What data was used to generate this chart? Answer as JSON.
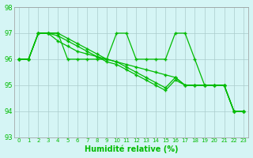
{
  "x": [
    0,
    1,
    2,
    3,
    4,
    5,
    6,
    7,
    8,
    9,
    10,
    11,
    12,
    13,
    14,
    15,
    16,
    17,
    18,
    19,
    20,
    21,
    22,
    23
  ],
  "line1": [
    96,
    96,
    97,
    97,
    97,
    96,
    96,
    96,
    96,
    96,
    97,
    97,
    96,
    96,
    96,
    96,
    97,
    97,
    96,
    95,
    95,
    95,
    94,
    94
  ],
  "line2": [
    96,
    96,
    97,
    97,
    96.7,
    96.5,
    96.3,
    96.2,
    96.1,
    96.0,
    95.9,
    95.8,
    95.7,
    95.6,
    95.5,
    95.4,
    95.3,
    95.0,
    95.0,
    95.0,
    95.0,
    95.0,
    94.0,
    94.0
  ],
  "line3": [
    96,
    96,
    97,
    97,
    96.9,
    96.7,
    96.5,
    96.3,
    96.1,
    95.9,
    95.8,
    95.6,
    95.4,
    95.2,
    95.0,
    94.8,
    95.2,
    95.0,
    95.0,
    95.0,
    95.0,
    95.0,
    94.0,
    94.0
  ],
  "line4": [
    96,
    96,
    97,
    97,
    97,
    96.8,
    96.6,
    96.4,
    96.2,
    96.0,
    95.9,
    95.7,
    95.5,
    95.3,
    95.1,
    94.9,
    95.3,
    95.0,
    95.0,
    95.0,
    95.0,
    95.0,
    94.0,
    94.0
  ],
  "line_color": "#00bb00",
  "bg_color": "#d5f5f5",
  "grid_color": "#aacccc",
  "xlabel": "Humidité relative (%)",
  "ylim": [
    93,
    98
  ],
  "xlim_min": -0.5,
  "xlim_max": 23.5,
  "yticks": [
    93,
    94,
    95,
    96,
    97,
    98
  ],
  "xticks": [
    0,
    1,
    2,
    3,
    4,
    5,
    6,
    7,
    8,
    9,
    10,
    11,
    12,
    13,
    14,
    15,
    16,
    17,
    18,
    19,
    20,
    21,
    22,
    23
  ]
}
